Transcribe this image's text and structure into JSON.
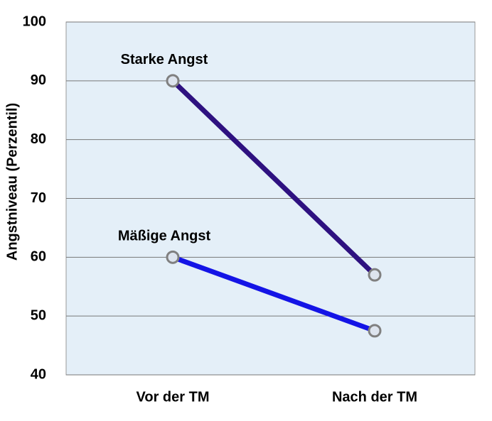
{
  "chart_data": {
    "type": "line",
    "y_label": "Angstniveau (Perzentil)",
    "categories": [
      "Vor der TM",
      "Nach der TM"
    ],
    "series": [
      {
        "name": "Starke Angst",
        "color": "#2e1180",
        "values": [
          90,
          57
        ]
      },
      {
        "name": "Mäßige Angst",
        "color": "#1414e6",
        "values": [
          60,
          47.5
        ]
      }
    ],
    "ylim": [
      40,
      100
    ],
    "yticks": [
      40,
      50,
      60,
      70,
      80,
      90,
      100
    ],
    "grid": true
  }
}
